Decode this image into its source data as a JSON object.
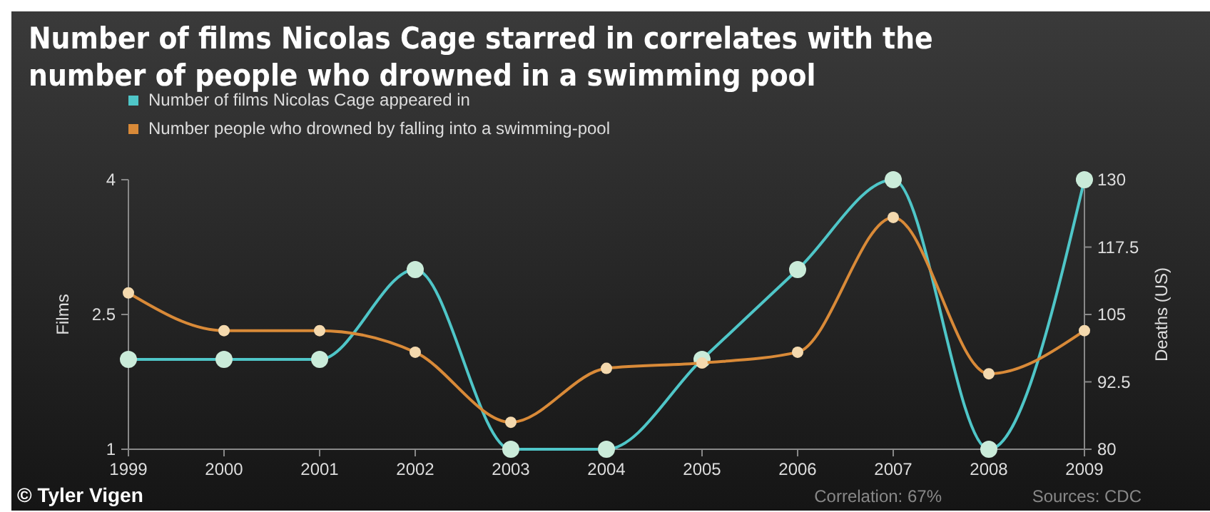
{
  "chart_data": {
    "type": "line",
    "title": "Number of films Nicolas Cage starred in correlates with the number of people who drowned in a swimming pool",
    "ylabel": "Films",
    "y2label": "Deaths (US)",
    "x": [
      1999,
      2000,
      2001,
      2002,
      2003,
      2004,
      2005,
      2006,
      2007,
      2008,
      2009
    ],
    "xlim": [
      1999,
      2009
    ],
    "xticks": [
      1999,
      2000,
      2001,
      2002,
      2003,
      2004,
      2005,
      2006,
      2007,
      2008,
      2009
    ],
    "ylim": [
      1,
      4
    ],
    "yticks": [
      1,
      2.5,
      4
    ],
    "y2lim": [
      80,
      130
    ],
    "y2ticks": [
      80,
      92.5,
      105,
      117.5,
      130
    ],
    "series": [
      {
        "name": "Number of films Nicolas Cage appeared in",
        "color": "#4fc6c8",
        "values": [
          2,
          2,
          2,
          3,
          1,
          1,
          2,
          3,
          4,
          1,
          4
        ]
      },
      {
        "name": "Number people who drowned by falling into a swimming-pool",
        "color": "#d98a38",
        "axis": "y2",
        "values": [
          109,
          102,
          102,
          98,
          85,
          95,
          96,
          98,
          123,
          94,
          102
        ]
      }
    ],
    "legend": "top left",
    "marker": "circle",
    "grid": false,
    "annotations": [
      "© Tyler Vigen",
      "Correlation: 67%",
      "Sources: CDC"
    ]
  }
}
